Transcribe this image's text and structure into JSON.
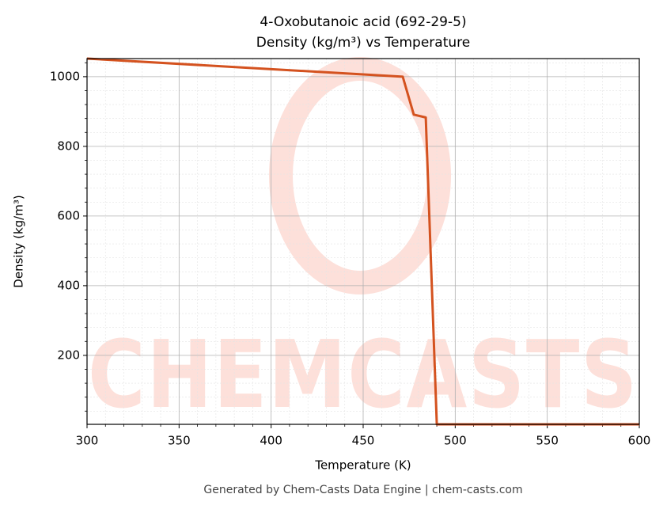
{
  "chart_data": {
    "type": "line",
    "title": "4-Oxobutanoic acid (692-29-5)",
    "subtitle": "Density (kg/m³) vs Temperature",
    "x_label": "Temperature (K)",
    "y_label": "Density (kg/m³)",
    "watermark": "CHEMCASTS",
    "footer": "Generated by Chem-Casts Data Engine | chem-casts.com",
    "x": [
      300,
      471.5,
      477.5,
      484,
      490,
      600
    ],
    "series": [
      {
        "name": "Density",
        "color": "#d4521f",
        "values": [
          1052,
          1000,
          891,
          883,
          2,
          2
        ]
      }
    ],
    "xlim": [
      300,
      600
    ],
    "xticks": [
      300,
      350,
      400,
      450,
      500,
      550,
      600
    ],
    "ylim": [
      2,
      1052
    ],
    "yticks": [
      200,
      400,
      600,
      800,
      1000
    ],
    "xminor": [
      310,
      320,
      330,
      340,
      360,
      370,
      380,
      390,
      410,
      420,
      430,
      440,
      460,
      470,
      480,
      490,
      510,
      520,
      530,
      540,
      560,
      570,
      580,
      590
    ],
    "yminor": [
      40,
      80,
      120,
      160,
      240,
      280,
      320,
      360,
      440,
      480,
      520,
      560,
      640,
      680,
      720,
      760,
      840,
      880,
      920,
      960,
      1040
    ],
    "grid": true
  }
}
